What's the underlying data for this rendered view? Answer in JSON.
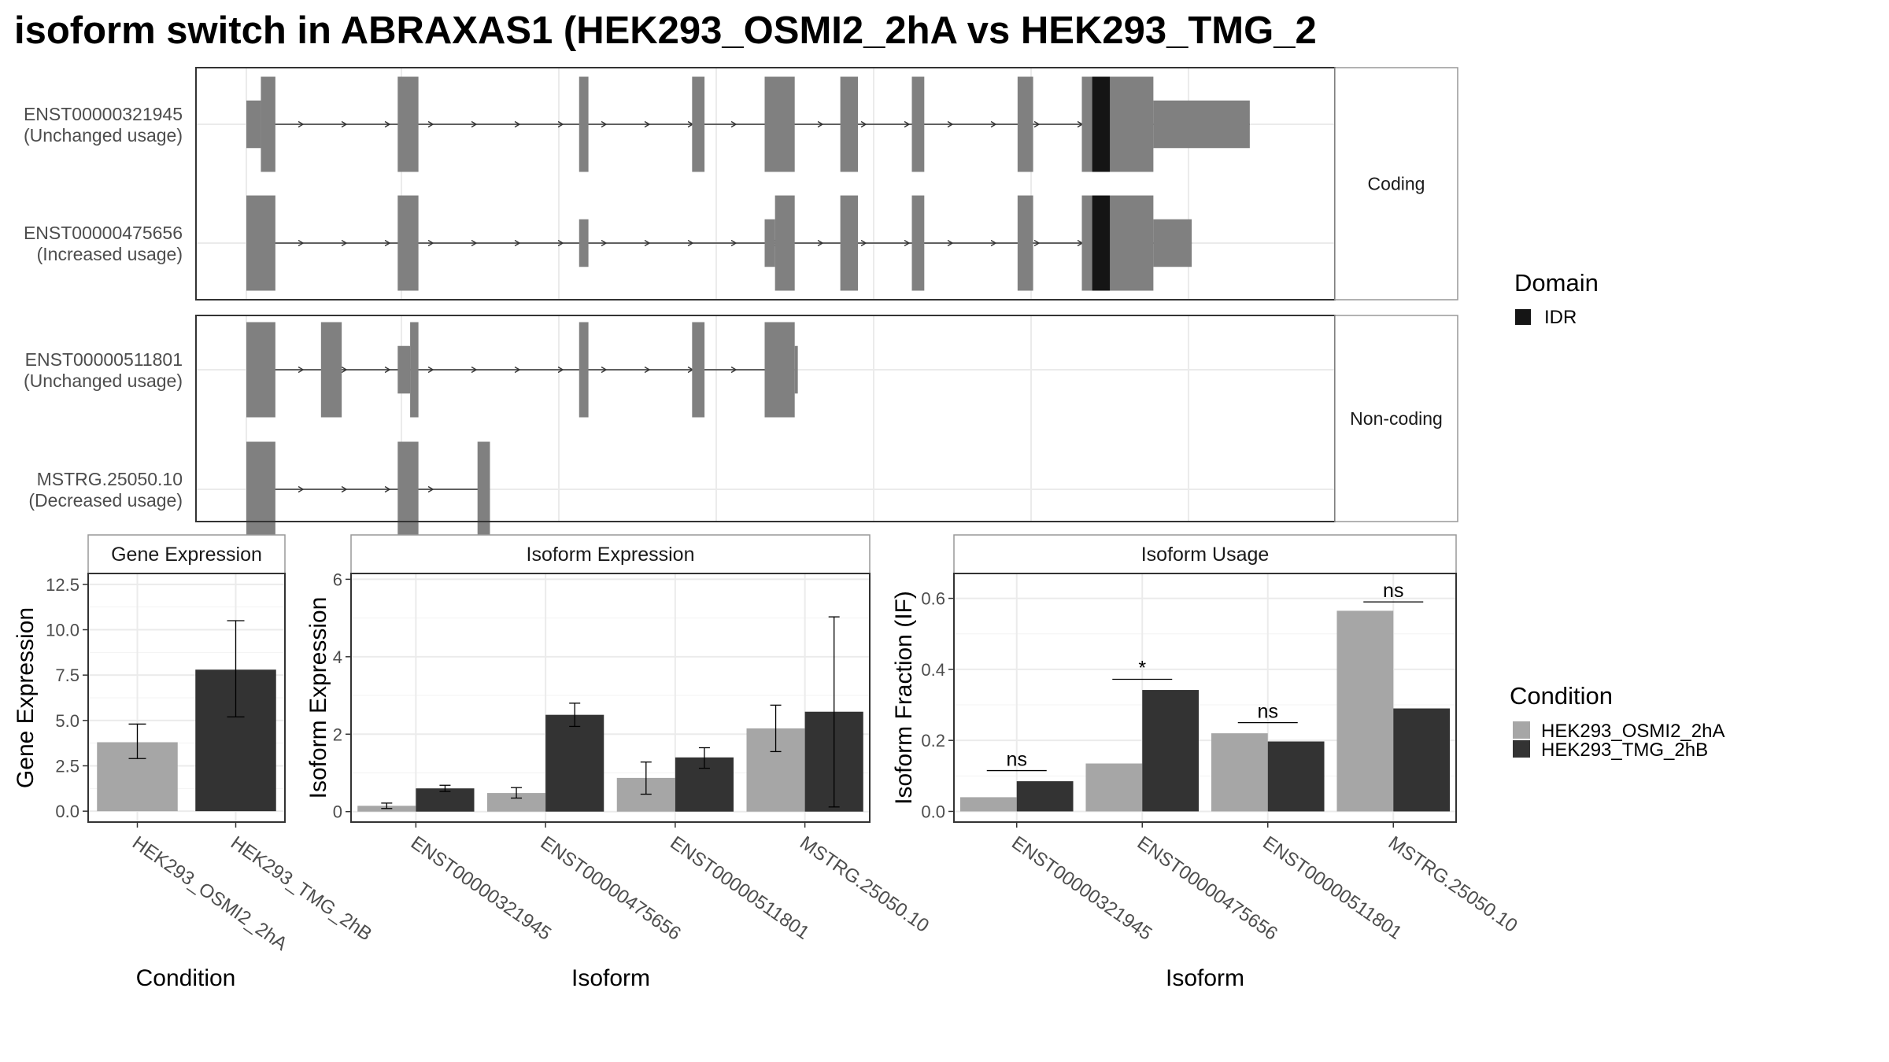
{
  "title": "isoform switch in ABRAXAS1 (HEK293_OSMI2_2hA vs HEK293_TMG_2",
  "colors": {
    "exon": "#808080",
    "domain_idr": "#151515",
    "condition_a": "#a6a6a6",
    "condition_b": "#333333",
    "grid": "#ebebeb",
    "strip_bg": "#ffffff",
    "panel_border": "#333333",
    "strip_border": "#999999"
  },
  "structure": {
    "genomic_range": [
      0,
      1000
    ],
    "exon_height_full": 1.0,
    "exon_height_utr": 0.5,
    "groups": [
      {
        "label": "Coding",
        "transcripts": [
          {
            "id": "ENST00000321945",
            "usage": "(Unchanged usage)",
            "intron": [
              16,
              968
            ],
            "exons": [
              [
                0,
                14,
                0.5
              ],
              [
                14,
                28,
                1.0
              ],
              [
                146,
                166,
                1.0
              ],
              [
                321,
                330,
                1.0
              ],
              [
                430,
                442,
                1.0
              ],
              [
                500,
                529,
                1.0
              ],
              [
                573,
                590,
                1.0
              ],
              [
                642,
                654,
                1.0
              ],
              [
                744,
                759,
                1.0
              ],
              [
                806,
                830,
                1.0
              ],
              [
                830,
                875,
                1.0
              ],
              [
                875,
                968,
                0.5
              ]
            ],
            "domains": [
              [
                816,
                833
              ]
            ]
          },
          {
            "id": "ENST00000475656",
            "usage": "(Increased usage)",
            "intron": [
              16,
              912
            ],
            "exons": [
              [
                0,
                28,
                1.0
              ],
              [
                146,
                166,
                1.0
              ],
              [
                321,
                330,
                0.5
              ],
              [
                500,
                510,
                0.5
              ],
              [
                510,
                529,
                1.0
              ],
              [
                573,
                590,
                1.0
              ],
              [
                642,
                654,
                1.0
              ],
              [
                744,
                759,
                1.0
              ],
              [
                806,
                830,
                1.0
              ],
              [
                830,
                875,
                1.0
              ],
              [
                875,
                912,
                0.5
              ]
            ],
            "domains": [
              [
                816,
                833
              ]
            ]
          }
        ]
      },
      {
        "label": "Non-coding",
        "transcripts": [
          {
            "id": "ENST00000511801",
            "usage": "(Unchanged usage)",
            "intron": [
              16,
              529
            ],
            "exons": [
              [
                0,
                28,
                1.0
              ],
              [
                72,
                92,
                1.0
              ],
              [
                146,
                158,
                0.5
              ],
              [
                158,
                166,
                1.0
              ],
              [
                321,
                330,
                1.0
              ],
              [
                430,
                442,
                1.0
              ],
              [
                500,
                529,
                1.0
              ],
              [
                529,
                532,
                0.5
              ]
            ],
            "domains": []
          },
          {
            "id": "MSTRG.25050.10",
            "usage": "(Decreased usage)",
            "intron": [
              16,
              235
            ],
            "exons": [
              [
                0,
                28,
                1.0
              ],
              [
                146,
                166,
                1.0
              ],
              [
                223,
                235,
                1.0
              ]
            ],
            "domains": []
          }
        ]
      }
    ],
    "legend": {
      "title": "Domain",
      "items": [
        "IDR"
      ]
    }
  },
  "chart_data": [
    {
      "type": "bar",
      "title": "Gene Expression",
      "xlabel": "Condition",
      "ylabel": "Gene Expression",
      "categories": [
        "HEK293_OSMI2_2hA",
        "HEK293_TMG_2hB"
      ],
      "values": [
        3.8,
        7.8
      ],
      "error": [
        [
          2.9,
          4.8
        ],
        [
          5.2,
          10.5
        ]
      ],
      "ylim": [
        -0.6,
        13.1
      ],
      "yticks": [
        0.0,
        2.5,
        5.0,
        7.5,
        10.0,
        12.5
      ],
      "ytick_labels": [
        "0.0",
        "2.5",
        "5.0",
        "7.5",
        "10.0",
        "12.5"
      ]
    },
    {
      "type": "bar",
      "title": "Isoform Expression",
      "xlabel": "Isoform",
      "ylabel": "Isoform Expression",
      "categories": [
        "ENST00000321945",
        "ENST00000475656",
        "ENST00000511801",
        "MSTRG.25050.10"
      ],
      "series": [
        {
          "name": "HEK293_OSMI2_2hA",
          "values": [
            0.15,
            0.48,
            0.87,
            2.15
          ],
          "error": [
            [
              0.08,
              0.22
            ],
            [
              0.35,
              0.62
            ],
            [
              0.45,
              1.28
            ],
            [
              1.55,
              2.75
            ]
          ]
        },
        {
          "name": "HEK293_TMG_2hB",
          "values": [
            0.6,
            2.5,
            1.4,
            2.58
          ],
          "error": [
            [
              0.52,
              0.68
            ],
            [
              2.2,
              2.8
            ],
            [
              1.12,
              1.65
            ],
            [
              0.12,
              5.03
            ]
          ]
        }
      ],
      "ylim": [
        -0.27,
        6.15
      ],
      "yticks": [
        0,
        2,
        4,
        6
      ],
      "ytick_labels": [
        "0",
        "2",
        "4",
        "6"
      ]
    },
    {
      "type": "bar",
      "title": "Isoform Usage",
      "xlabel": "Isoform",
      "ylabel": "Isoform Fraction (IF)",
      "categories": [
        "ENST00000321945",
        "ENST00000475656",
        "ENST00000511801",
        "MSTRG.25050.10"
      ],
      "series": [
        {
          "name": "HEK293_OSMI2_2hA",
          "values": [
            0.04,
            0.135,
            0.22,
            0.565
          ]
        },
        {
          "name": "HEK293_TMG_2hB",
          "values": [
            0.085,
            0.342,
            0.197,
            0.29
          ]
        }
      ],
      "significance": [
        {
          "label": "ns",
          "y": 0.115
        },
        {
          "label": "*",
          "y": 0.372
        },
        {
          "label": "ns",
          "y": 0.25
        },
        {
          "label": "ns",
          "y": 0.59
        }
      ],
      "ylim": [
        -0.03,
        0.67
      ],
      "yticks": [
        0.0,
        0.2,
        0.4,
        0.6
      ],
      "ytick_labels": [
        "0.0",
        "0.2",
        "0.4",
        "0.6"
      ]
    }
  ],
  "condition_legend": {
    "title": "Condition",
    "items": [
      "HEK293_OSMI2_2hA",
      "HEK293_TMG_2hB"
    ]
  }
}
